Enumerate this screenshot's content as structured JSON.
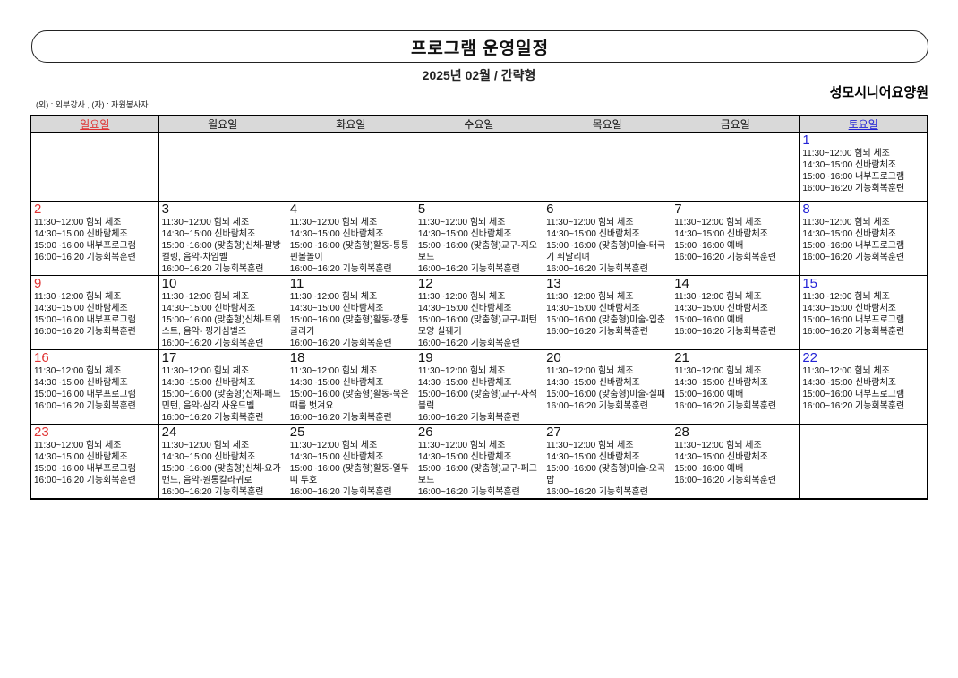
{
  "header": {
    "title": "프로그램 운영일정",
    "subtitle": "2025년 02월 / 간략형",
    "facility": "성모시니어요양원",
    "legend": "(외) :  외부강사 , (자) :  자원봉사자"
  },
  "colors": {
    "sunday": "#e03333",
    "saturday": "#2424d6",
    "header_bg": "#d9d9d9",
    "border": "#000000"
  },
  "calendar": {
    "weekday_headers": [
      {
        "label": "일요일",
        "type": "sunday"
      },
      {
        "label": "월요일",
        "type": "weekday"
      },
      {
        "label": "화요일",
        "type": "weekday"
      },
      {
        "label": "수요일",
        "type": "weekday"
      },
      {
        "label": "목요일",
        "type": "weekday"
      },
      {
        "label": "금요일",
        "type": "weekday"
      },
      {
        "label": "토요일",
        "type": "saturday"
      }
    ],
    "weeks": [
      [
        {
          "day": "",
          "type": "sunday",
          "events": []
        },
        {
          "day": "",
          "type": "weekday",
          "events": []
        },
        {
          "day": "",
          "type": "weekday",
          "events": []
        },
        {
          "day": "",
          "type": "weekday",
          "events": []
        },
        {
          "day": "",
          "type": "weekday",
          "events": []
        },
        {
          "day": "",
          "type": "weekday",
          "events": []
        },
        {
          "day": "1",
          "type": "saturday",
          "events": [
            "11:30~12:00 힘뇌 체조",
            "14:30~15:00 신바람체조",
            "15:00~16:00 내부프로그램",
            "16:00~16:20 기능회복훈련"
          ]
        }
      ],
      [
        {
          "day": "2",
          "type": "sunday",
          "events": [
            "11:30~12:00 힘뇌 체조",
            "14:30~15:00 신바람체조",
            "15:00~16:00 내부프로그램",
            "16:00~16:20 기능회복훈련"
          ]
        },
        {
          "day": "3",
          "type": "weekday",
          "events": [
            "11:30~12:00 힘뇌 체조",
            "14:30~15:00 신바람체조",
            "15:00~16:00 (맞춤형)신체-팔방컬링, 음악-차임벨",
            "16:00~16:20 기능회복훈련"
          ]
        },
        {
          "day": "4",
          "type": "weekday",
          "events": [
            "11:30~12:00 힘뇌 체조",
            "14:30~15:00 신바람체조",
            "15:00~16:00 (맞춤형)활동-통통 핀볼놀이",
            "16:00~16:20 기능회복훈련"
          ]
        },
        {
          "day": "5",
          "type": "weekday",
          "events": [
            "11:30~12:00 힘뇌 체조",
            "14:30~15:00 신바람체조",
            "15:00~16:00 (맞춤형)교구-지오보드",
            "16:00~16:20 기능회복훈련"
          ]
        },
        {
          "day": "6",
          "type": "weekday",
          "events": [
            "11:30~12:00 힘뇌 체조",
            "14:30~15:00 신바람체조",
            "15:00~16:00 (맞춤형)미술-태극기 휘날리며",
            "16:00~16:20 기능회복훈련"
          ]
        },
        {
          "day": "7",
          "type": "weekday",
          "events": [
            "11:30~12:00 힘뇌 체조",
            "14:30~15:00 신바람체조",
            "15:00~16:00 예배",
            "16:00~16:20 기능회복훈련"
          ]
        },
        {
          "day": "8",
          "type": "saturday",
          "events": [
            "11:30~12:00 힘뇌 체조",
            "14:30~15:00 신바람체조",
            "15:00~16:00 내부프로그램",
            "16:00~16:20 기능회복훈련"
          ]
        }
      ],
      [
        {
          "day": "9",
          "type": "sunday",
          "events": [
            "11:30~12:00 힘뇌 체조",
            "14:30~15:00 신바람체조",
            "15:00~16:00 내부프로그램",
            "16:00~16:20 기능회복훈련"
          ]
        },
        {
          "day": "10",
          "type": "weekday",
          "events": [
            "11:30~12:00 힘뇌 체조",
            "14:30~15:00 신바람체조",
            "15:00~16:00 (맞춤형)신체-트위스트, 음악- 핑거심벌즈",
            "16:00~16:20 기능회복훈련"
          ]
        },
        {
          "day": "11",
          "type": "weekday",
          "events": [
            "11:30~12:00 힘뇌 체조",
            "14:30~15:00 신바람체조",
            "15:00~16:00 (맞춤형)활동-깡통 굴리기",
            "16:00~16:20 기능회복훈련"
          ]
        },
        {
          "day": "12",
          "type": "weekday",
          "events": [
            "11:30~12:00 힘뇌 체조",
            "14:30~15:00 신바람체조",
            "15:00~16:00 (맞춤형)교구-패턴모양 실꿰기",
            "16:00~16:20 기능회복훈련"
          ]
        },
        {
          "day": "13",
          "type": "weekday",
          "events": [
            "11:30~12:00 힘뇌 체조",
            "14:30~15:00 신바람체조",
            "15:00~16:00 (맞춤형)미술-입춘",
            "16:00~16:20 기능회복훈련"
          ]
        },
        {
          "day": "14",
          "type": "weekday",
          "events": [
            "11:30~12:00 힘뇌 체조",
            "14:30~15:00 신바람체조",
            "15:00~16:00 예배",
            "16:00~16:20 기능회복훈련"
          ]
        },
        {
          "day": "15",
          "type": "saturday",
          "events": [
            "11:30~12:00 힘뇌 체조",
            "14:30~15:00 신바람체조",
            "15:00~16:00 내부프로그램",
            "16:00~16:20 기능회복훈련"
          ]
        }
      ],
      [
        {
          "day": "16",
          "type": "sunday",
          "events": [
            "11:30~12:00 힘뇌 체조",
            "14:30~15:00 신바람체조",
            "15:00~16:00 내부프로그램",
            "16:00~16:20 기능회복훈련"
          ]
        },
        {
          "day": "17",
          "type": "weekday",
          "events": [
            "11:30~12:00 힘뇌 체조",
            "14:30~15:00 신바람체조",
            "15:00~16:00 (맞춤형)신체-패드민턴, 음악-삼각 사운드벨",
            "16:00~16:20 기능회복훈련"
          ]
        },
        {
          "day": "18",
          "type": "weekday",
          "events": [
            "11:30~12:00 힘뇌 체조",
            "14:30~15:00 신바람체조",
            "15:00~16:00 (맞춤형)활동-묵은때를 벗겨요",
            "16:00~16:20 기능회복훈련"
          ]
        },
        {
          "day": "19",
          "type": "weekday",
          "events": [
            "11:30~12:00 힘뇌 체조",
            "14:30~15:00 신바람체조",
            "15:00~16:00 (맞춤형)교구-자석블럭",
            "16:00~16:20 기능회복훈련"
          ]
        },
        {
          "day": "20",
          "type": "weekday",
          "events": [
            "11:30~12:00 힘뇌 체조",
            "14:30~15:00 신바람체조",
            "15:00~16:00 (맞춤형)미술-실패",
            "16:00~16:20 기능회복훈련"
          ]
        },
        {
          "day": "21",
          "type": "weekday",
          "events": [
            "11:30~12:00 힘뇌 체조",
            "14:30~15:00 신바람체조",
            "15:00~16:00 예배",
            "16:00~16:20 기능회복훈련"
          ]
        },
        {
          "day": "22",
          "type": "saturday",
          "events": [
            "11:30~12:00 힘뇌 체조",
            "14:30~15:00 신바람체조",
            "15:00~16:00 내부프로그램",
            "16:00~16:20 기능회복훈련"
          ]
        }
      ],
      [
        {
          "day": "23",
          "type": "sunday",
          "events": [
            "11:30~12:00 힘뇌 체조",
            "14:30~15:00 신바람체조",
            "15:00~16:00 내부프로그램",
            "16:00~16:20 기능회복훈련"
          ]
        },
        {
          "day": "24",
          "type": "weekday",
          "events": [
            "11:30~12:00 힘뇌 체조",
            "14:30~15:00 신바람체조",
            "15:00~16:00 (맞춤형)신체-요가밴드, 음악-원통칼라귀로",
            "16:00~16:20 기능회복훈련"
          ]
        },
        {
          "day": "25",
          "type": "weekday",
          "events": [
            "11:30~12:00 힘뇌 체조",
            "14:30~15:00 신바람체조",
            "15:00~16:00 (맞춤형)활동-열두띠 투호",
            "16:00~16:20 기능회복훈련"
          ]
        },
        {
          "day": "26",
          "type": "weekday",
          "events": [
            "11:30~12:00 힘뇌 체조",
            "14:30~15:00 신바람체조",
            "15:00~16:00 (맞춤형)교구-페그보드",
            "16:00~16:20 기능회복훈련"
          ]
        },
        {
          "day": "27",
          "type": "weekday",
          "events": [
            "11:30~12:00 힘뇌 체조",
            "14:30~15:00 신바람체조",
            "15:00~16:00 (맞춤형)미술-오곡밥",
            "16:00~16:20 기능회복훈련"
          ]
        },
        {
          "day": "28",
          "type": "weekday",
          "events": [
            "11:30~12:00 힘뇌 체조",
            "14:30~15:00 신바람체조",
            "15:00~16:00 예배",
            "16:00~16:20 기능회복훈련"
          ]
        },
        {
          "day": "",
          "type": "saturday",
          "events": []
        }
      ]
    ]
  }
}
